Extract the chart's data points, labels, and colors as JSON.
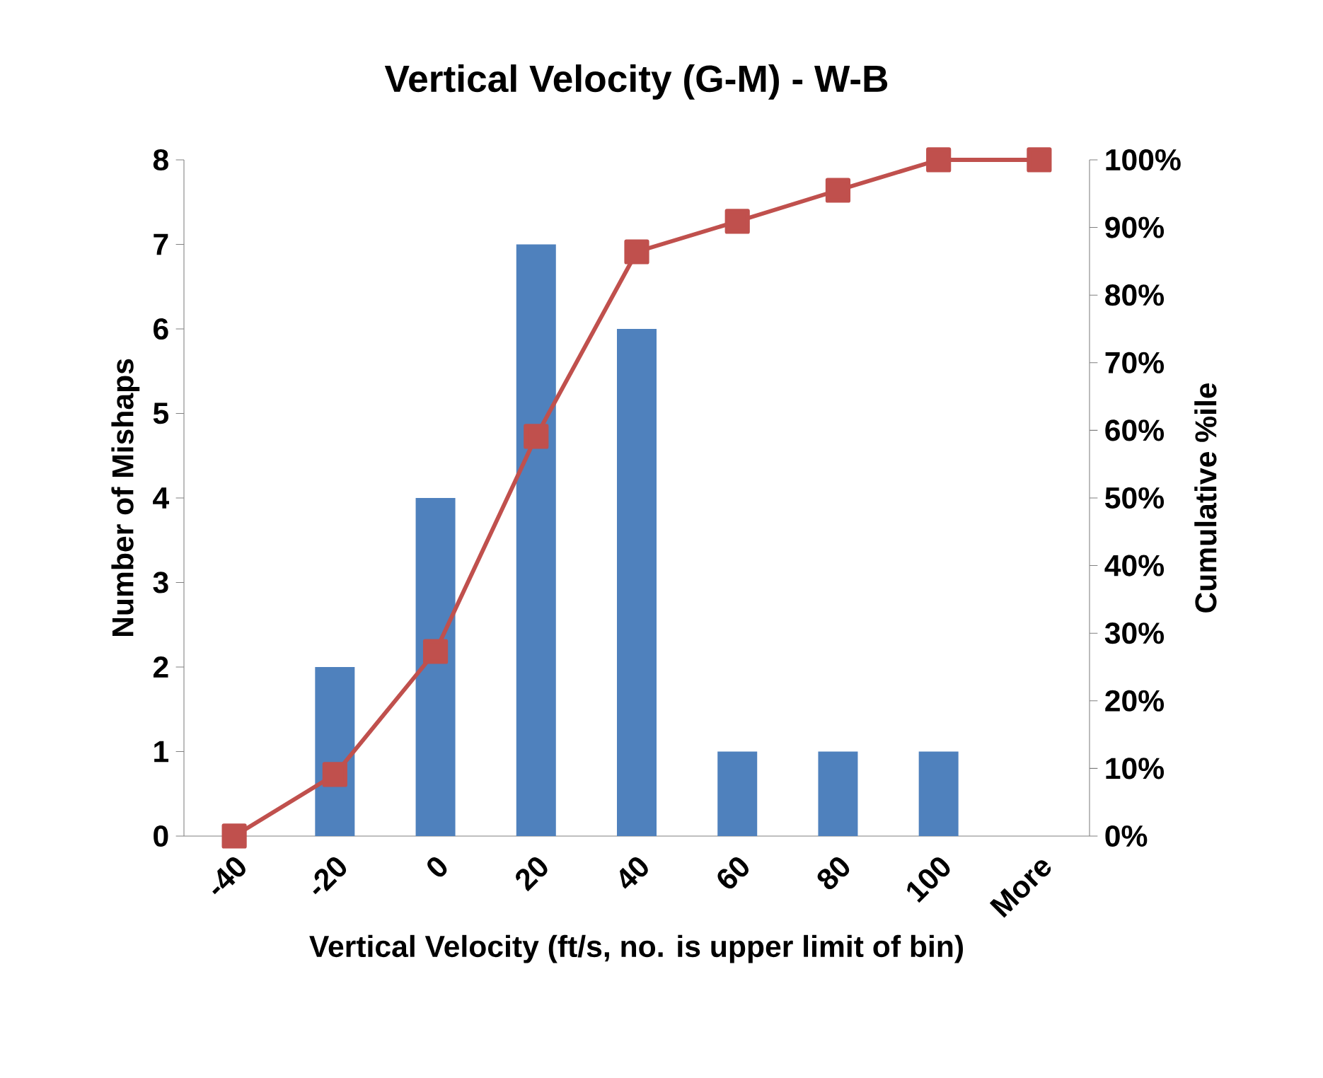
{
  "chart_data": {
    "type": "bar",
    "title": "Vertical Velocity (G-M) - W-B",
    "xlabel": "Vertical Velocity (ft/s, no. is upper limit of bin)",
    "ylabel": "Number of Mishaps",
    "y2label": "Cumulative %ile",
    "categories": [
      "-40",
      "-20",
      "0",
      "20",
      "40",
      "60",
      "80",
      "100",
      "More"
    ],
    "series": [
      {
        "color": "#4f81bd",
        "values": [
          0,
          2,
          4,
          7,
          6,
          1,
          1,
          1,
          0
        ]
      },
      {
        "type": "line",
        "axis": "y2",
        "color": "#c0504d",
        "marker": "square",
        "values": [
          0,
          9.1,
          27.3,
          59.1,
          86.4,
          90.9,
          95.5,
          100,
          100
        ]
      }
    ],
    "ylim": [
      0,
      8
    ],
    "yticks": [
      0,
      1,
      2,
      3,
      4,
      5,
      6,
      7,
      8
    ],
    "y2lim": [
      0,
      100
    ],
    "y2ticks": [
      {
        "value": 0,
        "label": "0%"
      },
      {
        "value": 10,
        "label": "10%"
      },
      {
        "value": 20,
        "label": "20%"
      },
      {
        "value": 30,
        "label": "30%"
      },
      {
        "value": 40,
        "label": "40%"
      },
      {
        "value": 50,
        "label": "50%"
      },
      {
        "value": 60,
        "label": "60%"
      },
      {
        "value": 70,
        "label": "70%"
      },
      {
        "value": 80,
        "label": "80%"
      },
      {
        "value": 90,
        "label": "90%"
      },
      {
        "value": 100,
        "label": "100%"
      }
    ]
  }
}
